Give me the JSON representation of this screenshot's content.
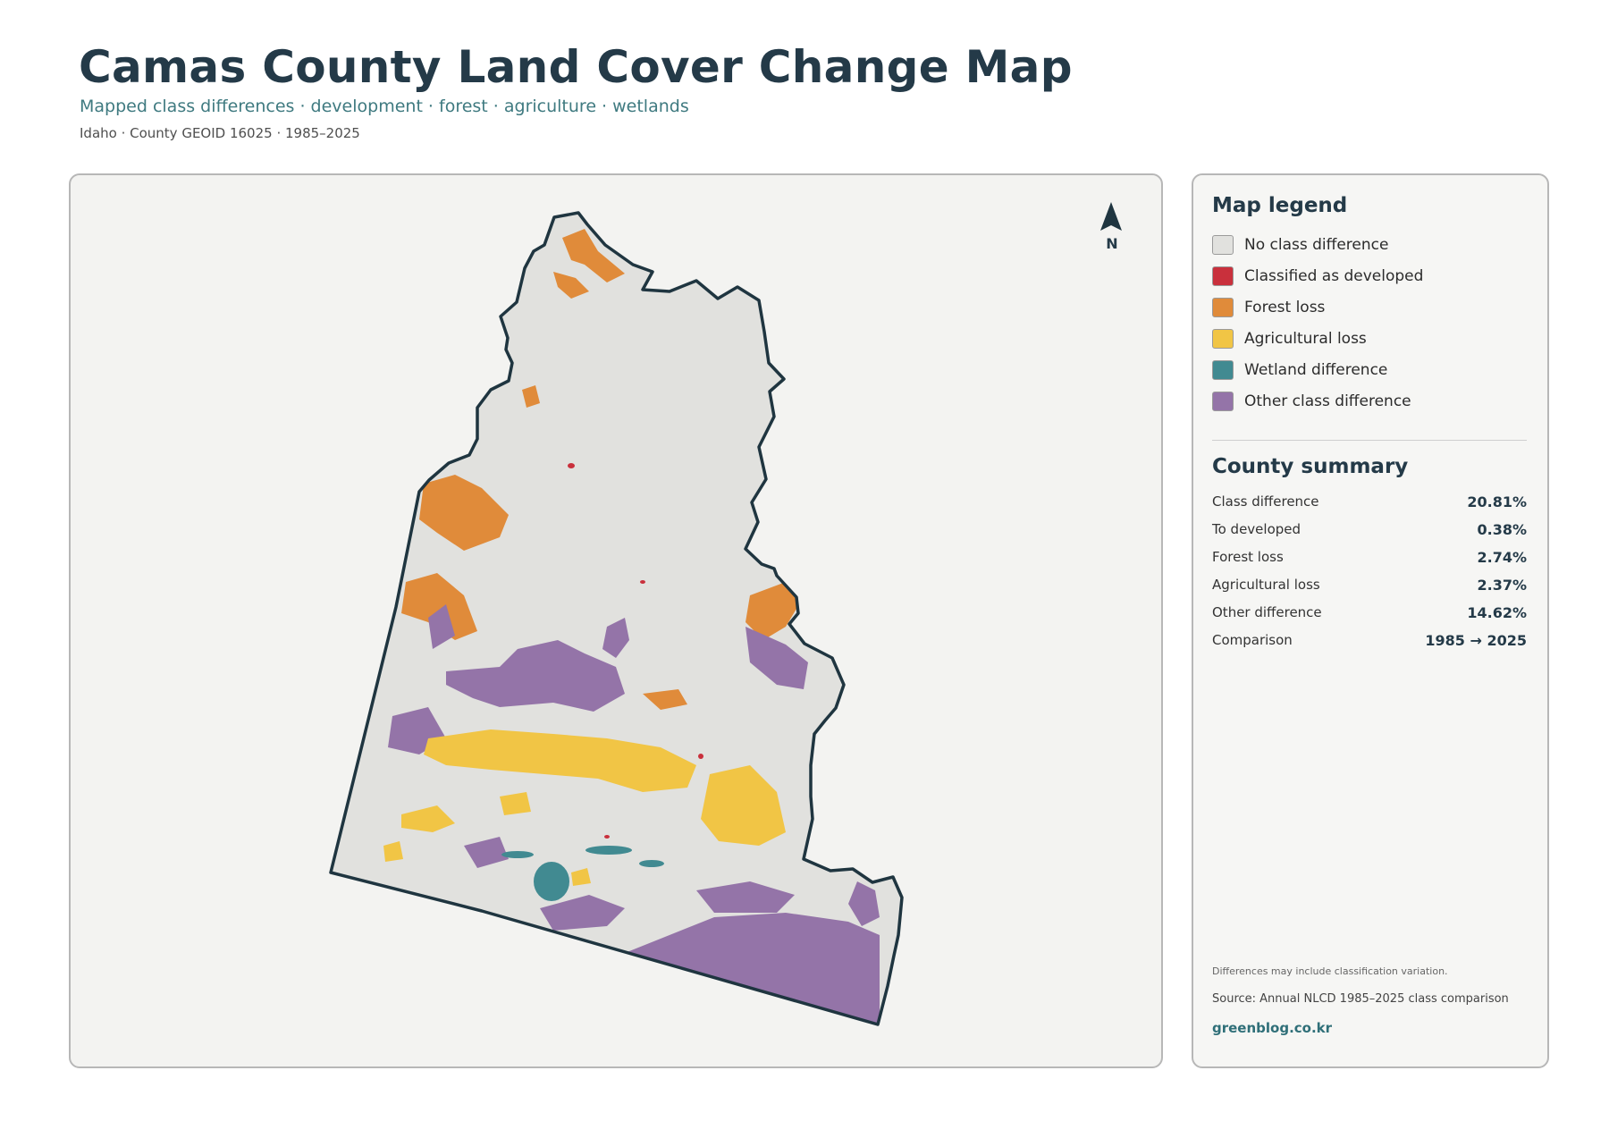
{
  "header": {
    "title": "Camas County Land Cover Change Map",
    "subtitle": "Mapped class differences · development · forest · agriculture · wetlands",
    "meta": "Idaho · County GEOID 16025 · 1985–2025"
  },
  "map": {
    "north_label": "N",
    "colors": {
      "no_change": "#e1e1de",
      "developed": "#c9303c",
      "forest_loss": "#e08b3a",
      "agricultural_loss": "#f1c545",
      "wetland": "#418a91",
      "other": "#9474a8",
      "outline": "#1f3540"
    }
  },
  "legend": {
    "title": "Map legend",
    "items": [
      {
        "label": "No class difference",
        "color": "#e1e1de"
      },
      {
        "label": "Classified as developed",
        "color": "#c9303c"
      },
      {
        "label": "Forest loss",
        "color": "#e08b3a"
      },
      {
        "label": "Agricultural loss",
        "color": "#f1c545"
      },
      {
        "label": "Wetland difference",
        "color": "#418a91"
      },
      {
        "label": "Other class difference",
        "color": "#9474a8"
      }
    ]
  },
  "summary": {
    "title": "County summary",
    "rows": [
      {
        "label": "Class difference",
        "value": "20.81%"
      },
      {
        "label": "To developed",
        "value": "0.38%"
      },
      {
        "label": "Forest loss",
        "value": "2.74%"
      },
      {
        "label": "Agricultural loss",
        "value": "2.37%"
      },
      {
        "label": "Other difference",
        "value": "14.62%"
      },
      {
        "label": "Comparison",
        "value": "1985 → 2025"
      }
    ]
  },
  "footer": {
    "note": "Differences may include classification variation.",
    "source": "Source: Annual NLCD 1985–2025 class comparison",
    "credit": "greenblog.co.kr"
  }
}
